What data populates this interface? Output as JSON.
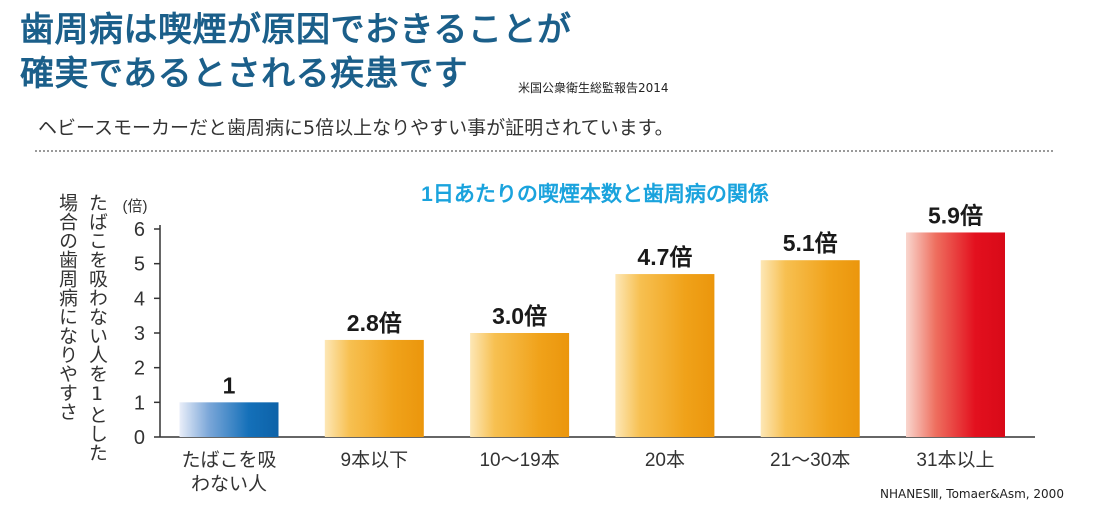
{
  "heading": {
    "line1": "歯周病は喫煙が原因でおきることが",
    "line2": "確実であるとされる疾患です",
    "source": "米国公衆衛生総監報告2014"
  },
  "subtitle": "ヘビースモーカーだと歯周病に5倍以上なりやすい事が証明されています。",
  "chart_data": {
    "type": "bar",
    "title": "1日あたりの喫煙本数と歯周病の関係",
    "ylabel_lines": [
      "たばこを吸わない人を1とした",
      "場合の歯周病になりやすさ"
    ],
    "yunit": "(倍)",
    "ylim": [
      0,
      6
    ],
    "yticks": [
      0,
      1,
      2,
      3,
      4,
      5,
      6
    ],
    "grid": false,
    "categories": [
      [
        "たばこを吸",
        "わない人"
      ],
      [
        "9本以下"
      ],
      [
        "10〜19本"
      ],
      [
        "20本"
      ],
      [
        "21〜30本"
      ],
      [
        "31本以上"
      ]
    ],
    "values": [
      1,
      2.8,
      3.0,
      4.7,
      5.1,
      5.9
    ],
    "value_labels": [
      "1",
      "2.8倍",
      "3.0倍",
      "4.7倍",
      "5.1倍",
      "5.9倍"
    ],
    "bar_styles": [
      "blue",
      "orange",
      "orange",
      "orange",
      "orange",
      "red"
    ],
    "colors": {
      "title": "#1aa3dd",
      "blue": "#0f6db5",
      "orange": "#f0a21a",
      "red": "#e3101e",
      "axis": "#333333"
    },
    "source": "NHANESⅢ, Tomaer&Asm, 2000"
  }
}
